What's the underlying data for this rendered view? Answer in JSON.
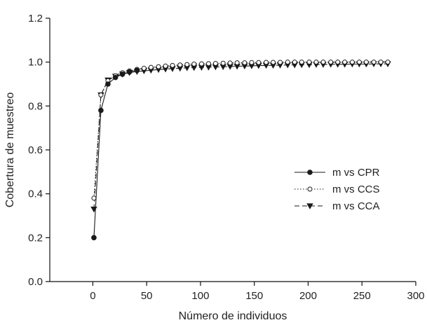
{
  "chart_data": {
    "type": "line",
    "xlabel": "Número de individuos",
    "ylabel": "Cobertura de muestreo",
    "xlim": [
      -40,
      300
    ],
    "ylim": [
      0.0,
      1.2
    ],
    "xticks": [
      0,
      50,
      100,
      150,
      200,
      250,
      300
    ],
    "yticks": [
      "0.0",
      "0.2",
      "0.4",
      "0.6",
      "0.8",
      "1.0",
      "1.2"
    ],
    "grid": false,
    "legend_position": "right",
    "series": [
      {
        "name": "m vs CPR",
        "marker": "filled-circle",
        "line_style": "solid",
        "color": "#1a1a1a",
        "x": [
          1,
          7.5,
          14,
          21,
          27.5,
          34,
          41
        ],
        "y": [
          0.2,
          0.78,
          0.9,
          0.93,
          0.945,
          0.955,
          0.962
        ]
      },
      {
        "name": "m vs CCS",
        "marker": "open-circle",
        "line_style": "dotted",
        "color": "#1a1a1a",
        "x": [
          1,
          7.5,
          14,
          21,
          27.5,
          34,
          41,
          47.5,
          54,
          61,
          67.5,
          74,
          81,
          87.5,
          94,
          101,
          107.5,
          114,
          121,
          127.5,
          134,
          141,
          147.5,
          154,
          161,
          167.5,
          174,
          181,
          187.5,
          194,
          201,
          207.5,
          214,
          221,
          227.5,
          234,
          241,
          247.5,
          254,
          261,
          267.5,
          274
        ],
        "y": [
          0.38,
          0.85,
          0.915,
          0.938,
          0.952,
          0.96,
          0.967,
          0.972,
          0.976,
          0.979,
          0.982,
          0.985,
          0.987,
          0.989,
          0.991,
          0.992,
          0.993,
          0.994,
          0.995,
          0.996,
          0.997,
          0.997,
          0.998,
          0.998,
          0.999,
          0.999,
          0.999,
          1.0,
          1.0,
          1.0,
          1.0,
          1.0,
          1.0,
          1.0,
          1.0,
          1.0,
          1.0,
          1.0,
          1.0,
          1.0,
          1.0,
          1.0
        ]
      },
      {
        "name": "m vs CCA",
        "marker": "filled-triangle-down",
        "line_style": "dashed",
        "color": "#1a1a1a",
        "x": [
          1,
          7.5,
          14,
          21,
          27.5,
          34,
          41,
          47.5,
          54,
          61,
          67.5,
          74,
          81,
          87.5,
          94,
          101,
          107.5,
          114,
          121,
          127.5,
          134,
          141,
          147.5,
          154,
          161,
          167.5,
          174,
          181,
          187.5,
          194,
          201,
          207.5,
          214,
          221,
          227.5,
          234,
          241,
          247.5,
          254,
          261,
          267.5,
          274
        ],
        "y": [
          0.33,
          0.85,
          0.918,
          0.935,
          0.945,
          0.952,
          0.957,
          0.96,
          0.963,
          0.966,
          0.968,
          0.97,
          0.972,
          0.974,
          0.975,
          0.976,
          0.977,
          0.978,
          0.979,
          0.98,
          0.981,
          0.982,
          0.983,
          0.984,
          0.985,
          0.985,
          0.986,
          0.987,
          0.987,
          0.988,
          0.988,
          0.989,
          0.989,
          0.99,
          0.99,
          0.99,
          0.991,
          0.991,
          0.991,
          0.992,
          0.992,
          0.992
        ]
      }
    ]
  }
}
